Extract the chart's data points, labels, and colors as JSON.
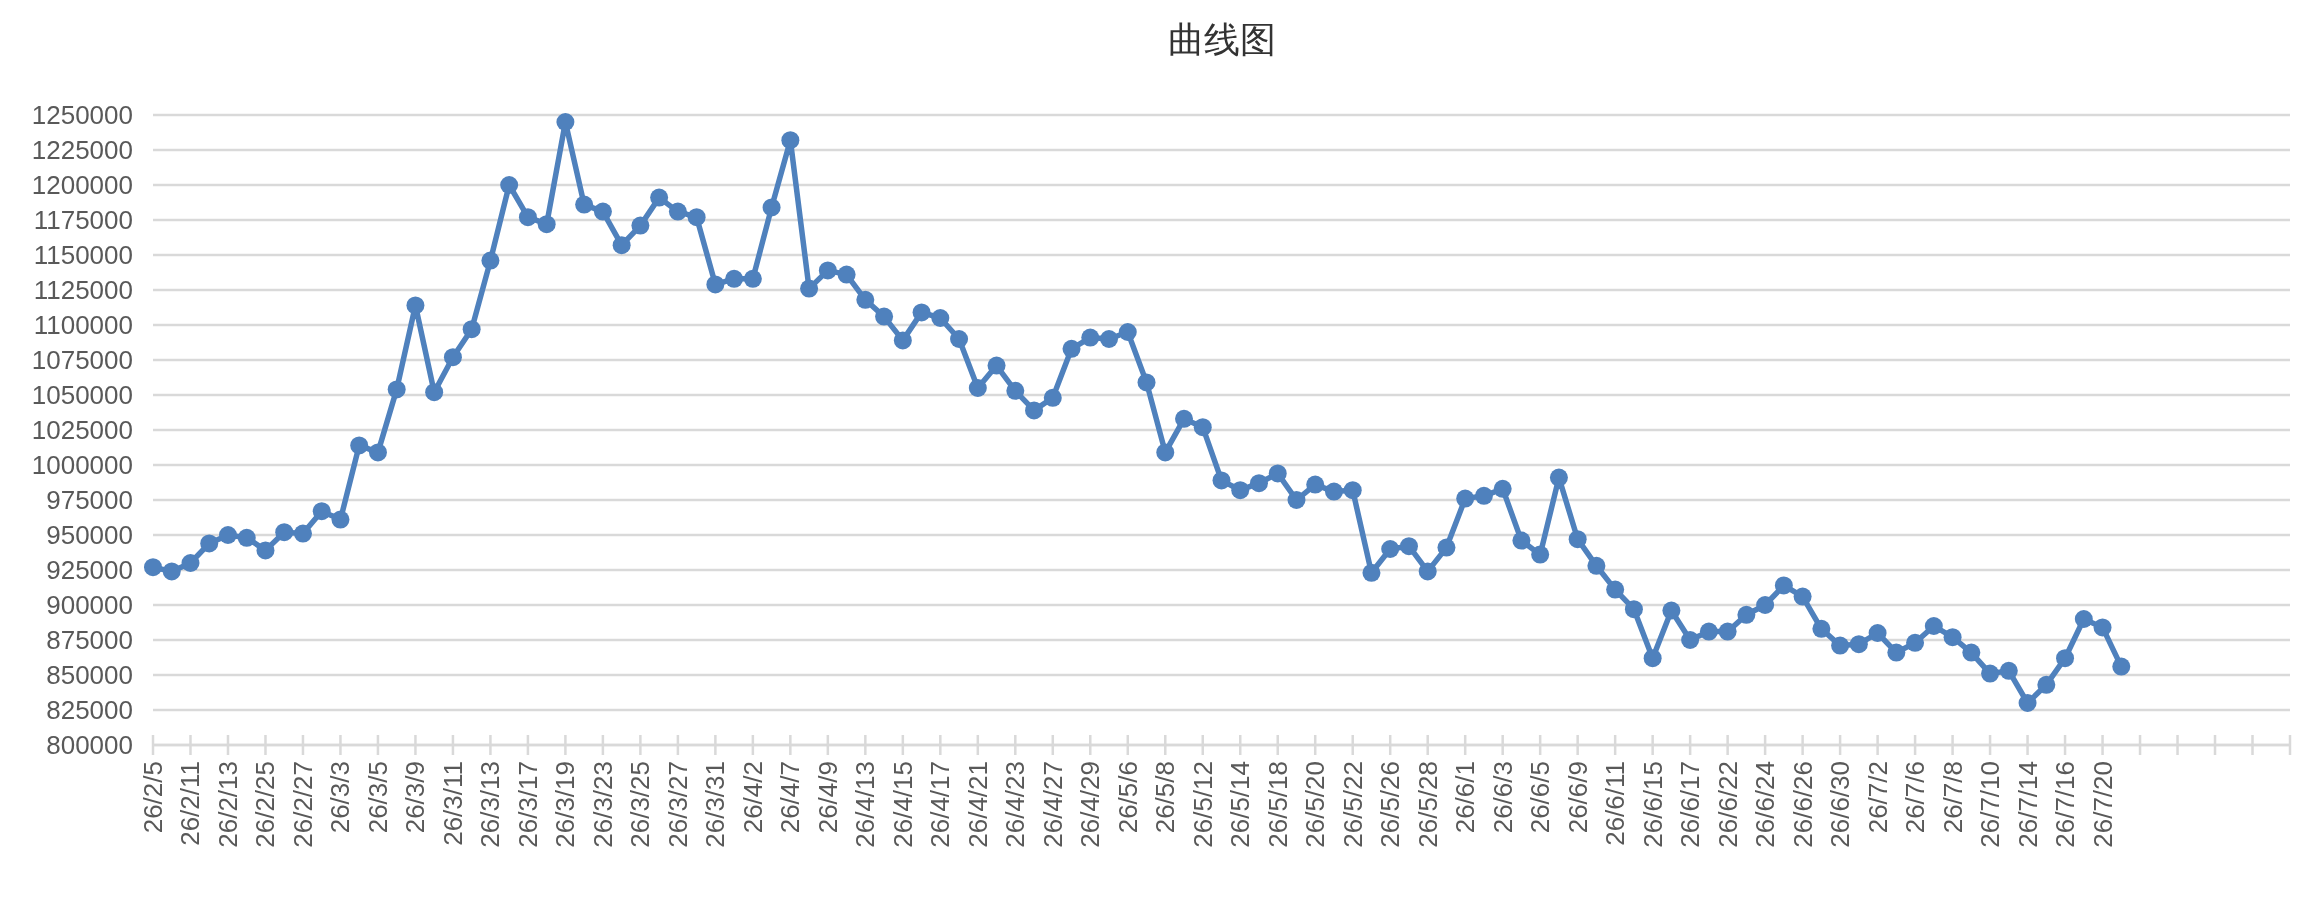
{
  "chart_data": {
    "type": "line",
    "title": "曲线图",
    "categories": [
      "26/2/5",
      null,
      "26/2/11",
      null,
      "26/2/13",
      null,
      "26/2/25",
      null,
      "26/2/27",
      null,
      "26/3/3",
      null,
      "26/3/5",
      null,
      "26/3/9",
      null,
      "26/3/11",
      null,
      "26/3/13",
      null,
      "26/3/17",
      null,
      "26/3/19",
      null,
      "26/3/23",
      null,
      "26/3/25",
      null,
      "26/3/27",
      null,
      "26/3/31",
      null,
      "26/4/2",
      null,
      "26/4/7",
      null,
      "26/4/9",
      null,
      "26/4/13",
      null,
      "26/4/15",
      null,
      "26/4/17",
      null,
      "26/4/21",
      null,
      "26/4/23",
      null,
      "26/4/27",
      null,
      "26/4/29",
      null,
      "26/5/6",
      null,
      "26/5/8",
      null,
      "26/5/12",
      null,
      "26/5/14",
      null,
      "26/5/18",
      null,
      "26/5/20",
      null,
      "26/5/22",
      null,
      "26/5/26",
      null,
      "26/5/28",
      null,
      "26/6/1",
      null,
      "26/6/3",
      null,
      "26/6/5",
      null,
      "26/6/9",
      null,
      "26/6/11",
      null,
      "26/6/15",
      null,
      "26/6/17",
      null,
      "26/6/22",
      null,
      "26/6/24",
      null,
      "26/6/26",
      null,
      "26/6/30",
      null,
      "26/7/2",
      null,
      "26/7/6",
      null,
      "26/7/8",
      null,
      "26/7/10",
      null,
      "26/7/14",
      null,
      "26/7/16",
      null,
      "26/7/20",
      null,
      null,
      null,
      null,
      null,
      null,
      null,
      null,
      null,
      null
    ],
    "series": [
      {
        "color": "#4f81bd",
        "values": [
          927000,
          924000,
          930000,
          944000,
          950000,
          948000,
          939000,
          952000,
          951000,
          967000,
          961000,
          1014000,
          1009000,
          1054000,
          1114000,
          1052000,
          1077000,
          1097000,
          1146000,
          1200000,
          1177000,
          1172000,
          1245000,
          1186000,
          1181000,
          1157000,
          1171000,
          1191000,
          1181000,
          1177000,
          1129000,
          1133000,
          1133000,
          1184000,
          1232000,
          1126000,
          1139000,
          1136000,
          1118000,
          1106000,
          1089000,
          1109000,
          1105000,
          1090000,
          1055000,
          1071000,
          1053000,
          1039000,
          1048000,
          1083000,
          1091000,
          1090000,
          1095000,
          1059000,
          1009000,
          1033000,
          1027000,
          989000,
          982000,
          987000,
          994000,
          975000,
          986000,
          981000,
          982000,
          923000,
          940000,
          942000,
          924000,
          941000,
          976000,
          978000,
          983000,
          946000,
          936000,
          991000,
          947000,
          928000,
          911000,
          897000,
          862000,
          896000,
          875000,
          881000,
          881000,
          893000,
          900000,
          914000,
          906000,
          883000,
          871000,
          872000,
          880000,
          866000,
          873000,
          885000,
          877000,
          866000,
          851000,
          853000,
          830000,
          843000,
          862000,
          890000,
          884000,
          856000,
          null,
          null,
          null,
          null,
          null,
          null,
          null,
          null,
          null
        ]
      }
    ],
    "ylim": [
      800000,
      1250000
    ],
    "yticks": [
      800000,
      825000,
      850000,
      875000,
      900000,
      925000,
      950000,
      975000,
      1000000,
      1025000,
      1050000,
      1075000,
      1100000,
      1125000,
      1150000,
      1175000,
      1200000,
      1225000,
      1250000
    ],
    "grid": "y",
    "marker": "circle",
    "line_style": "solid"
  }
}
